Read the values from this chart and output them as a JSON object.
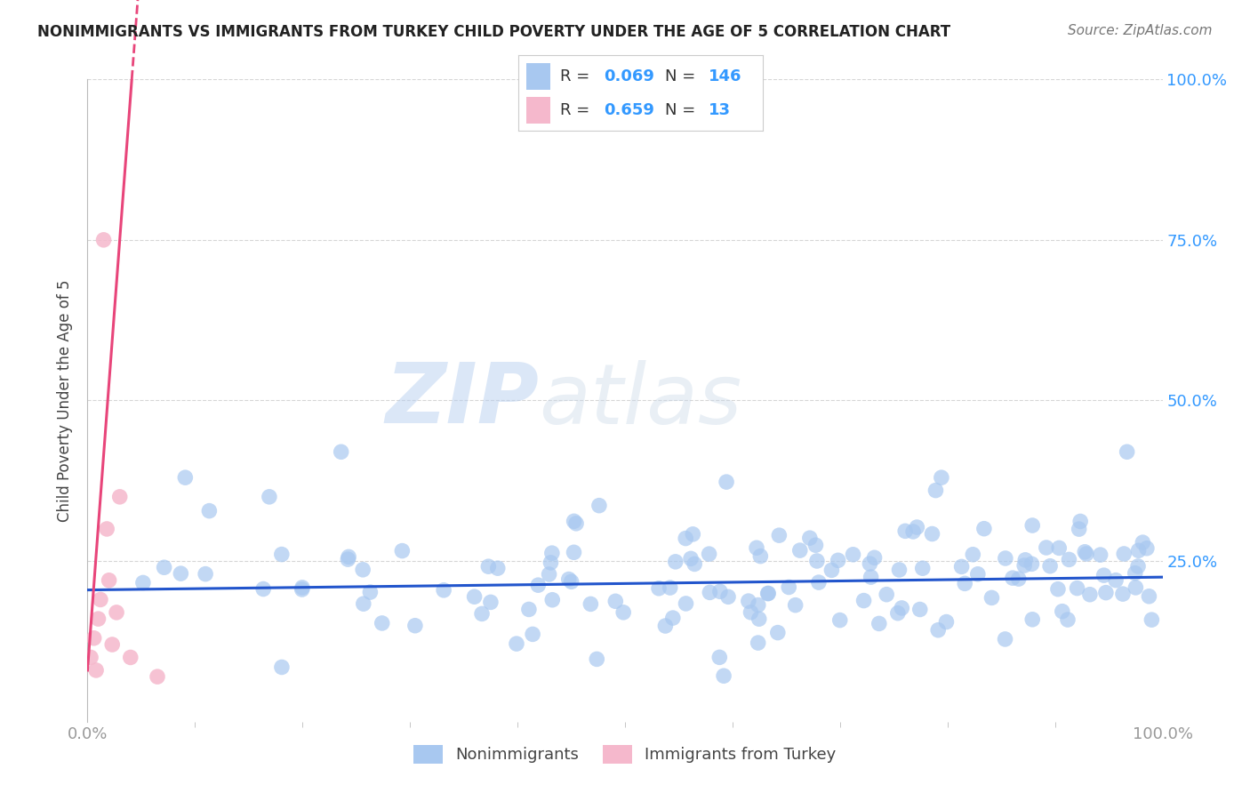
{
  "title": "NONIMMIGRANTS VS IMMIGRANTS FROM TURKEY CHILD POVERTY UNDER THE AGE OF 5 CORRELATION CHART",
  "source": "Source: ZipAtlas.com",
  "ylabel": "Child Poverty Under the Age of 5",
  "xlim": [
    0.0,
    1.0
  ],
  "ylim": [
    0.0,
    1.0
  ],
  "nonimmigrant_color": "#a8c8f0",
  "immigrant_color": "#f5b8cc",
  "regression_blue": "#2255cc",
  "regression_pink": "#e8457a",
  "R_nonimmigrant": 0.069,
  "N_nonimmigrant": 146,
  "R_immigrant": 0.659,
  "N_immigrant": 13,
  "legend_label_1": "Nonimmigrants",
  "legend_label_2": "Immigrants from Turkey",
  "watermark_zip": "ZIP",
  "watermark_atlas": "atlas",
  "background_color": "#ffffff",
  "grid_color": "#cccccc",
  "title_color": "#222222",
  "source_color": "#777777",
  "axis_label_color": "#444444",
  "tick_color": "#999999",
  "right_tick_color": "#3399ff",
  "legend_box_color": "#dddddd"
}
